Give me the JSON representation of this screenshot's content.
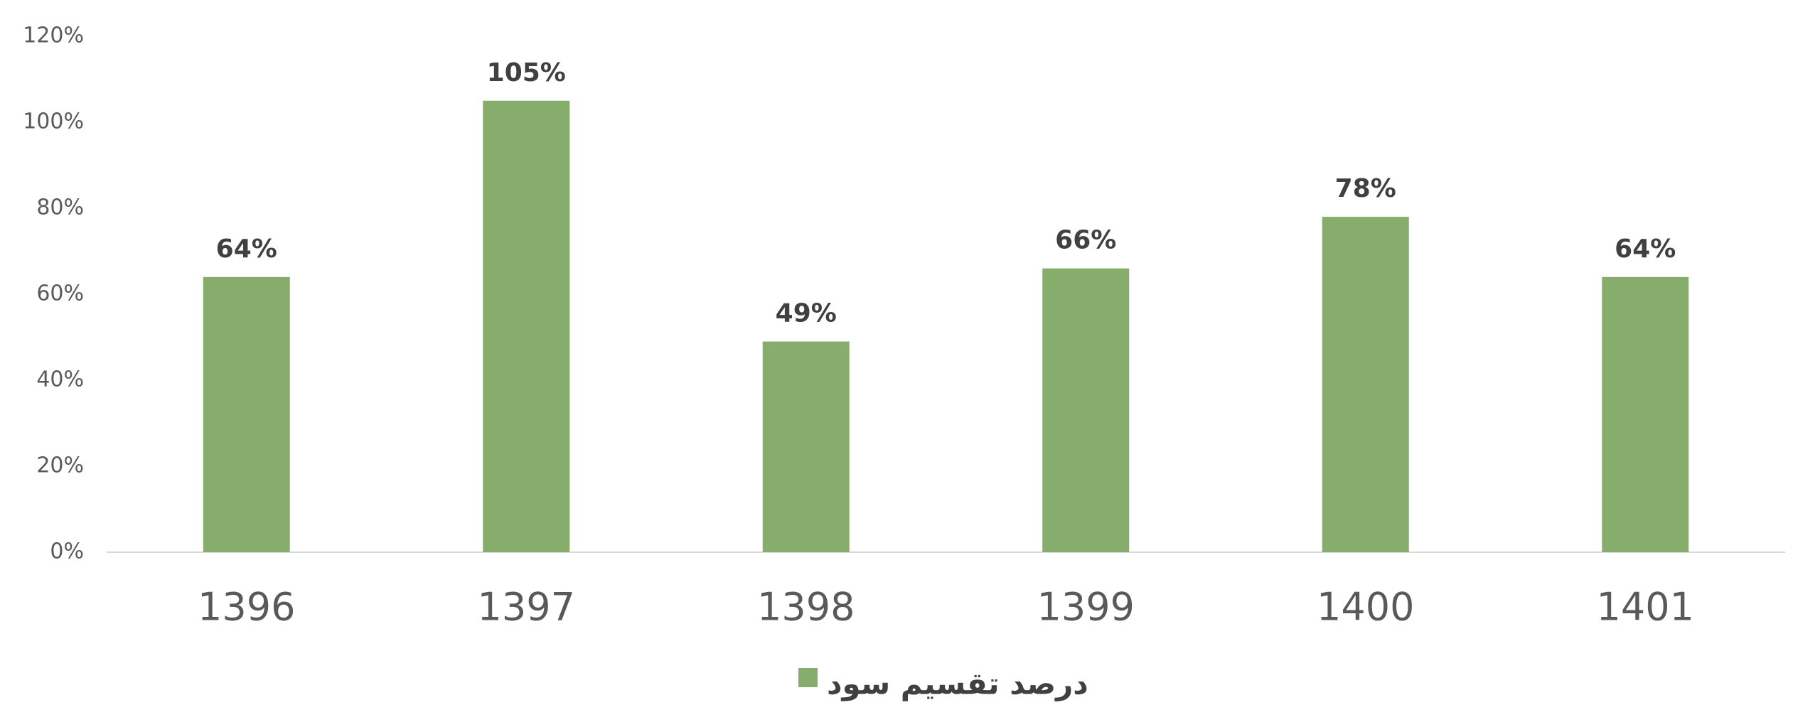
{
  "chart_data": {
    "type": "bar",
    "categories": [
      "1396",
      "1397",
      "1398",
      "1399",
      "1400",
      "1401"
    ],
    "series": [
      {
        "name": "درصد تقسیم سود",
        "color": "#87ad6c",
        "values": [
          64,
          105,
          49,
          66,
          78,
          64
        ],
        "value_labels": [
          "64%",
          "105%",
          "49%",
          "66%",
          "78%",
          "64%"
        ]
      }
    ],
    "ylim": [
      0,
      120
    ],
    "yticks": [
      {
        "value": 0,
        "label": "0%"
      },
      {
        "value": 20,
        "label": "20%"
      },
      {
        "value": 40,
        "label": "40%"
      },
      {
        "value": 60,
        "label": "60%"
      },
      {
        "value": 80,
        "label": "80%"
      },
      {
        "value": 100,
        "label": "100%"
      },
      {
        "value": 120,
        "label": "120%"
      }
    ],
    "grid": false,
    "legend": "bottom"
  }
}
